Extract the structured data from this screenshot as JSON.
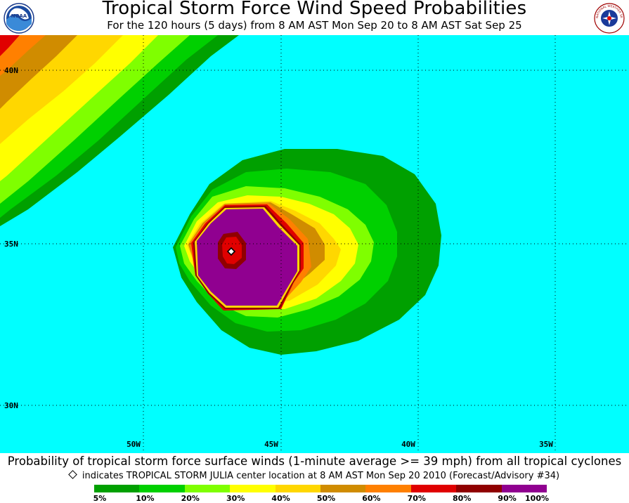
{
  "header": {
    "title": "Tropical Storm Force Wind Speed Probabilities",
    "subtitle": "For the 120 hours (5 days) from 8 AM AST Mon Sep 20 to 8 AM AST Sat Sep 25",
    "left_logo": "NOAA",
    "right_logo_text": "NATIONAL WEATHER SERVICE"
  },
  "map": {
    "ocean_color": "#00ffff",
    "latitude_labels": [
      "40N",
      "35N",
      "30N"
    ],
    "longitude_labels": [
      "50W",
      "45W",
      "40W",
      "35W"
    ],
    "storm_center_marker": "diamond"
  },
  "footer": {
    "caption": "Probability of tropical storm force surface winds (1-minute average >= 39 mph) from all tropical cyclones",
    "indicator_text": "indicates TROPICAL STORM JULIA center location at 8 AM AST Mon Sep 20 2010 (Forecast/Advisory #34)"
  },
  "legend": {
    "colors": [
      "#00a000",
      "#00d000",
      "#7fff00",
      "#ffff00",
      "#ffd700",
      "#d08c00",
      "#ff8000",
      "#e00000",
      "#900000",
      "#900090"
    ],
    "labels": [
      "5%",
      "10%",
      "20%",
      "30%",
      "40%",
      "50%",
      "60%",
      "70%",
      "80%",
      "90%",
      "100%"
    ]
  }
}
